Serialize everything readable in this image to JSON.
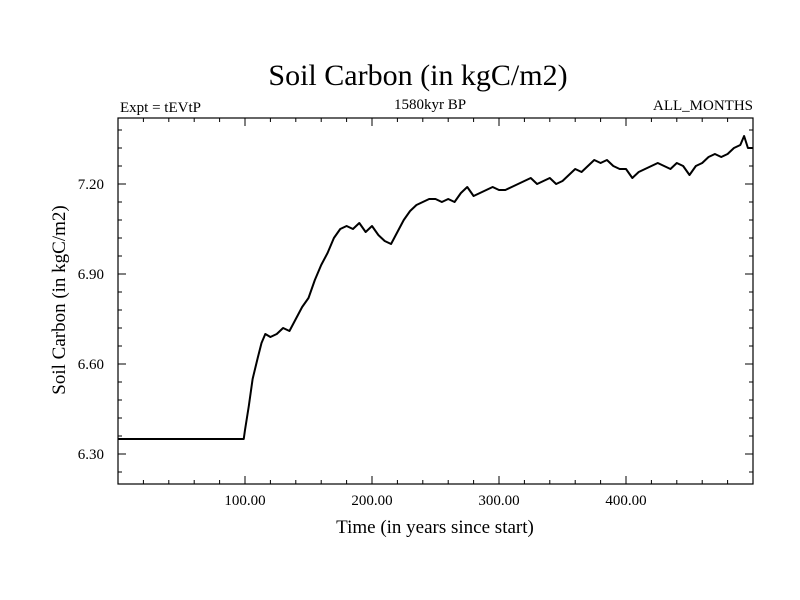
{
  "chart_data": {
    "type": "line",
    "title": "Soil Carbon (in kgC/m2)",
    "subtitle_left": "Expt = tEVtP",
    "subtitle_center": "1580kyr BP",
    "subtitle_right": "ALL_MONTHS",
    "xlabel": "Time (in years since start)",
    "ylabel": "Soil Carbon (in kgC/m2)",
    "xlim": [
      0,
      500
    ],
    "ylim": [
      6.2,
      7.42
    ],
    "x_ticks": [
      {
        "value": 100,
        "label": "100.00"
      },
      {
        "value": 200,
        "label": "200.00"
      },
      {
        "value": 300,
        "label": "300.00"
      },
      {
        "value": 400,
        "label": "400.00"
      }
    ],
    "y_ticks": [
      {
        "value": 6.3,
        "label": "6.30"
      },
      {
        "value": 6.6,
        "label": "6.60"
      },
      {
        "value": 6.9,
        "label": "6.90"
      },
      {
        "value": 7.2,
        "label": "7.20"
      }
    ],
    "series": [
      {
        "name": "Soil Carbon",
        "color": "#000000",
        "x": [
          0,
          99,
          100,
          103,
          106,
          110,
          113,
          116,
          120,
          125,
          130,
          135,
          140,
          145,
          150,
          155,
          160,
          165,
          170,
          175,
          180,
          185,
          190,
          195,
          200,
          205,
          210,
          215,
          220,
          225,
          230,
          235,
          240,
          245,
          250,
          255,
          260,
          265,
          270,
          275,
          280,
          285,
          290,
          295,
          300,
          305,
          310,
          315,
          320,
          325,
          330,
          335,
          340,
          345,
          350,
          355,
          360,
          365,
          370,
          375,
          380,
          385,
          390,
          395,
          400,
          405,
          410,
          415,
          420,
          425,
          430,
          435,
          440,
          445,
          450,
          455,
          460,
          465,
          470,
          475,
          480,
          485,
          490,
          493,
          496,
          500
        ],
        "values": [
          6.35,
          6.35,
          6.38,
          6.46,
          6.55,
          6.62,
          6.67,
          6.7,
          6.69,
          6.7,
          6.72,
          6.71,
          6.75,
          6.79,
          6.82,
          6.88,
          6.93,
          6.97,
          7.02,
          7.05,
          7.06,
          7.05,
          7.07,
          7.04,
          7.06,
          7.03,
          7.01,
          7.0,
          7.04,
          7.08,
          7.11,
          7.13,
          7.14,
          7.15,
          7.15,
          7.14,
          7.15,
          7.14,
          7.17,
          7.19,
          7.16,
          7.17,
          7.18,
          7.19,
          7.18,
          7.18,
          7.19,
          7.2,
          7.21,
          7.22,
          7.2,
          7.21,
          7.22,
          7.2,
          7.21,
          7.23,
          7.25,
          7.24,
          7.26,
          7.28,
          7.27,
          7.28,
          7.26,
          7.25,
          7.25,
          7.22,
          7.24,
          7.25,
          7.26,
          7.27,
          7.26,
          7.25,
          7.27,
          7.26,
          7.23,
          7.26,
          7.27,
          7.29,
          7.3,
          7.29,
          7.3,
          7.32,
          7.33,
          7.36,
          7.32,
          7.32
        ]
      }
    ]
  }
}
